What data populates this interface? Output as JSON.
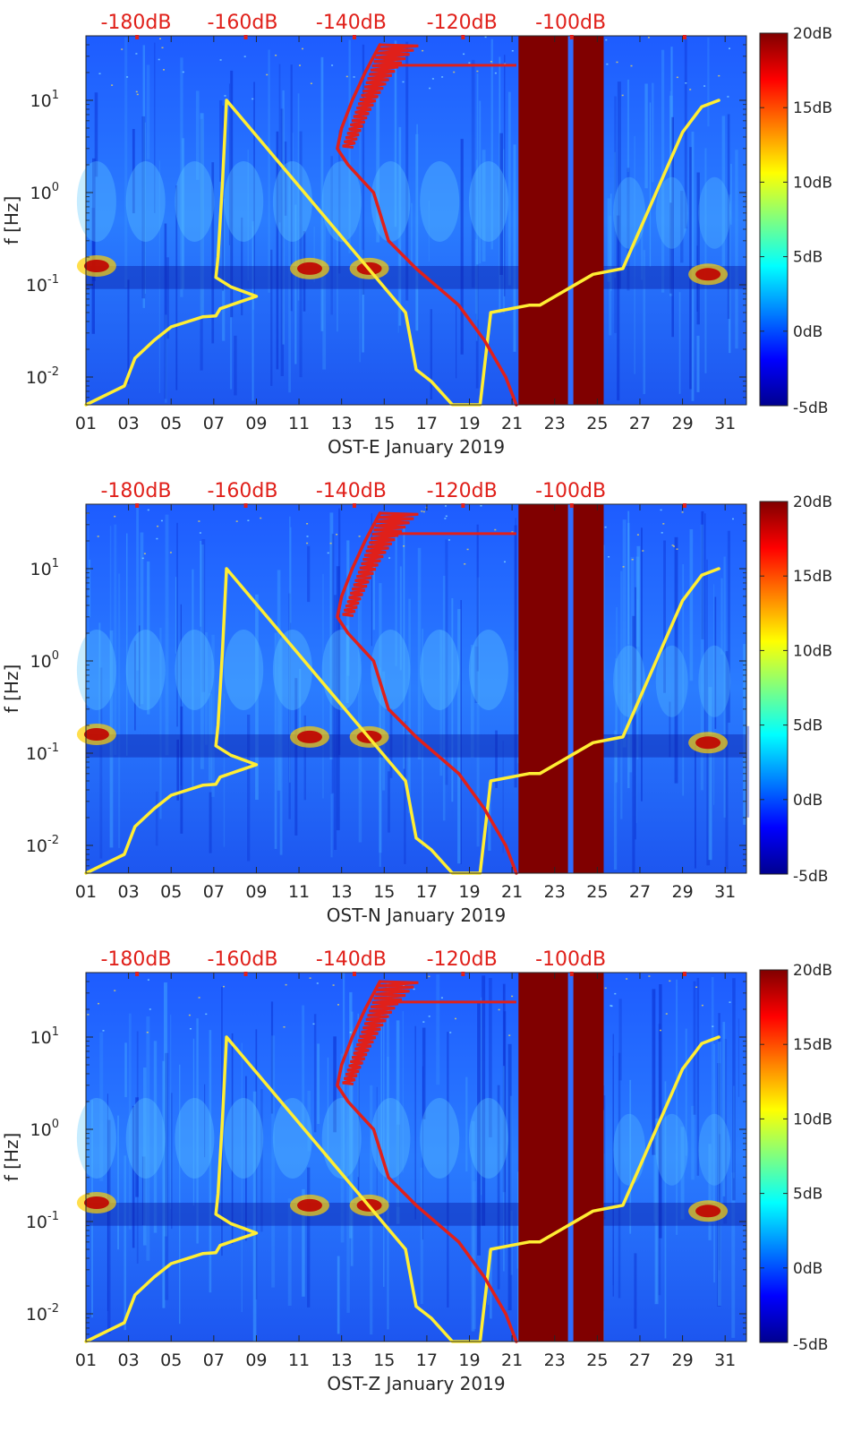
{
  "chart_data": [
    {
      "type": "heatmap",
      "station": "OST-E",
      "xlabel": "OST-E January 2019",
      "ylabel": "f [Hz]",
      "x_ticks": [
        "01",
        "03",
        "05",
        "07",
        "09",
        "11",
        "13",
        "15",
        "17",
        "19",
        "21",
        "23",
        "25",
        "27",
        "29",
        "31"
      ],
      "y_scale": "log",
      "y_ticks": [
        "10^-2",
        "10^-1",
        "10^0",
        "10^1"
      ],
      "ylim_hz": [
        0.005,
        50
      ],
      "top_ticks": [
        "-180dB",
        "-160dB",
        "-140dB",
        "-120dB",
        "-100dB"
      ],
      "colorbar": {
        "ticks": [
          "20dB",
          "15dB",
          "10dB",
          "5dB",
          "0dB",
          "-5dB"
        ],
        "range_db": [
          -5,
          20
        ],
        "colormap": "jet"
      },
      "data_gap_days": [
        21.3,
        25.3
      ],
      "series": [
        {
          "color": "#ffee33",
          "x_day": [
            1.0,
            2.8,
            3.3,
            4.2,
            5.0,
            6.5,
            7.1,
            7.3,
            8.2,
            9.0,
            7.8,
            7.1,
            7.2,
            7.4,
            7.6,
            16.0,
            16.5,
            17.2,
            18.2,
            19.5,
            20.0,
            21.8,
            22.3,
            24.8,
            26.2,
            29.0,
            29.9,
            30.7
          ],
          "y_hz": [
            0.005,
            0.008,
            0.016,
            0.025,
            0.035,
            0.045,
            0.046,
            0.055,
            0.065,
            0.075,
            0.095,
            0.12,
            0.2,
            1.2,
            10.0,
            0.05,
            0.012,
            0.009,
            0.005,
            0.005,
            0.05,
            0.06,
            0.06,
            0.13,
            0.15,
            4.5,
            8.5,
            10.0
          ]
        },
        {
          "color": "#e0201a",
          "x_day": [
            14.8,
            14.1,
            13.5,
            13.0,
            12.8,
            13.3,
            13.8,
            14.5,
            14.8,
            15.2,
            16.5,
            18.5,
            19.7,
            20.7,
            21.2
          ],
          "y_hz": [
            40,
            20,
            10,
            5,
            3,
            2,
            1.5,
            1,
            0.6,
            0.3,
            0.15,
            0.06,
            0.025,
            0.01,
            0.005
          ]
        }
      ]
    },
    {
      "type": "heatmap",
      "station": "OST-N",
      "xlabel": "OST-N January 2019",
      "ylabel": "f [Hz]",
      "x_ticks": [
        "01",
        "03",
        "05",
        "07",
        "09",
        "11",
        "13",
        "15",
        "17",
        "19",
        "21",
        "23",
        "25",
        "27",
        "29",
        "31"
      ],
      "y_scale": "log",
      "y_ticks": [
        "10^-2",
        "10^-1",
        "10^0",
        "10^1"
      ],
      "ylim_hz": [
        0.005,
        50
      ],
      "top_ticks": [
        "-180dB",
        "-160dB",
        "-140dB",
        "-120dB",
        "-100dB"
      ],
      "colorbar": {
        "ticks": [
          "20dB",
          "15dB",
          "10dB",
          "5dB",
          "0dB",
          "-5dB"
        ],
        "range_db": [
          -5,
          20
        ],
        "colormap": "jet"
      },
      "data_gap_days": [
        21.3,
        25.3
      ],
      "series": [
        {
          "color": "#ffee33",
          "x_day": [
            1.0,
            2.8,
            3.3,
            4.2,
            5.0,
            6.5,
            7.1,
            7.3,
            8.2,
            9.0,
            7.8,
            7.1,
            7.2,
            7.4,
            7.6,
            16.0,
            16.5,
            17.2,
            18.2,
            19.5,
            20.0,
            21.8,
            22.3,
            24.8,
            26.2,
            29.0,
            29.9,
            30.7
          ],
          "y_hz": [
            0.005,
            0.008,
            0.016,
            0.025,
            0.035,
            0.045,
            0.046,
            0.055,
            0.065,
            0.075,
            0.095,
            0.12,
            0.2,
            1.2,
            10.0,
            0.05,
            0.012,
            0.009,
            0.005,
            0.005,
            0.05,
            0.06,
            0.06,
            0.13,
            0.15,
            4.5,
            8.5,
            10.0
          ]
        },
        {
          "color": "#e0201a",
          "x_day": [
            14.8,
            14.1,
            13.5,
            13.0,
            12.8,
            13.3,
            13.8,
            14.5,
            14.8,
            15.2,
            16.5,
            18.5,
            19.7,
            20.7,
            21.2
          ],
          "y_hz": [
            40,
            20,
            10,
            5,
            3,
            2,
            1.5,
            1,
            0.6,
            0.3,
            0.15,
            0.06,
            0.025,
            0.01,
            0.005
          ]
        }
      ]
    },
    {
      "type": "heatmap",
      "station": "OST-Z",
      "xlabel": "OST-Z January 2019",
      "ylabel": "f [Hz]",
      "x_ticks": [
        "01",
        "03",
        "05",
        "07",
        "09",
        "11",
        "13",
        "15",
        "17",
        "19",
        "21",
        "23",
        "25",
        "27",
        "29",
        "31"
      ],
      "y_scale": "log",
      "y_ticks": [
        "10^-2",
        "10^-1",
        "10^0",
        "10^1"
      ],
      "ylim_hz": [
        0.005,
        50
      ],
      "top_ticks": [
        "-180dB",
        "-160dB",
        "-140dB",
        "-120dB",
        "-100dB"
      ],
      "colorbar": {
        "ticks": [
          "20dB",
          "15dB",
          "10dB",
          "5dB",
          "0dB",
          "-5dB"
        ],
        "range_db": [
          -5,
          20
        ],
        "colormap": "jet"
      },
      "data_gap_days": [
        21.3,
        25.3
      ],
      "series": [
        {
          "color": "#ffee33",
          "x_day": [
            1.0,
            2.8,
            3.3,
            4.2,
            5.0,
            6.5,
            7.1,
            7.3,
            8.2,
            9.0,
            7.8,
            7.1,
            7.2,
            7.4,
            7.6,
            16.0,
            16.5,
            17.2,
            18.2,
            19.5,
            20.0,
            21.8,
            22.3,
            24.8,
            26.2,
            29.0,
            29.9,
            30.7
          ],
          "y_hz": [
            0.005,
            0.008,
            0.016,
            0.025,
            0.035,
            0.045,
            0.046,
            0.055,
            0.065,
            0.075,
            0.095,
            0.12,
            0.2,
            1.2,
            10.0,
            0.05,
            0.012,
            0.009,
            0.005,
            0.005,
            0.05,
            0.06,
            0.06,
            0.13,
            0.15,
            4.5,
            8.5,
            10.0
          ]
        },
        {
          "color": "#e0201a",
          "x_day": [
            14.8,
            14.1,
            13.5,
            13.0,
            12.8,
            13.3,
            13.8,
            14.5,
            14.8,
            15.2,
            16.5,
            18.5,
            19.7,
            20.7,
            21.2
          ],
          "y_hz": [
            40,
            20,
            10,
            5,
            3,
            2,
            1.5,
            1,
            0.6,
            0.3,
            0.15,
            0.06,
            0.025,
            0.01,
            0.005
          ]
        }
      ]
    }
  ]
}
